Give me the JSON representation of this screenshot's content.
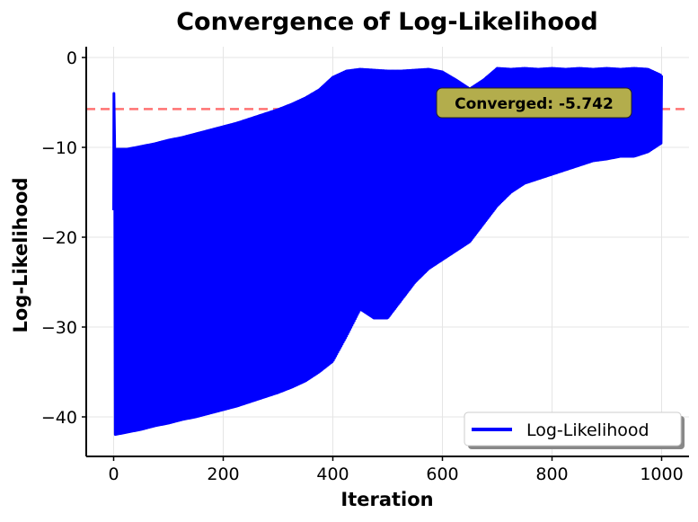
{
  "chart_data": {
    "type": "line",
    "title": "Convergence of Log-Likelihood",
    "xlabel": "Iteration",
    "ylabel": "Log-Likelihood",
    "xlim": [
      -50,
      1050
    ],
    "ylim": [
      -44.4,
      1.2
    ],
    "xticks": [
      0,
      200,
      400,
      600,
      800,
      1000
    ],
    "yticks": [
      0,
      -10,
      -20,
      -30,
      -40
    ],
    "grid": true,
    "legend": {
      "position": "lower-right",
      "entries": [
        "Log-Likelihood"
      ]
    },
    "series": [
      {
        "name": "Log-Likelihood",
        "color": "#0000ff",
        "description_of_values": "oscillating each iteration between upper and lower envelope",
        "x": [
          0,
          25,
          50,
          75,
          100,
          125,
          150,
          175,
          200,
          225,
          250,
          275,
          300,
          325,
          350,
          375,
          400,
          425,
          450,
          475,
          500,
          525,
          550,
          575,
          600,
          625,
          650,
          675,
          700,
          725,
          750,
          775,
          800,
          825,
          850,
          875,
          900,
          925,
          950,
          975,
          1000
        ],
        "upper": [
          -4,
          -10.2,
          -9.9,
          -9.6,
          -9.2,
          -8.9,
          -8.5,
          -8.1,
          -7.7,
          -7.3,
          -6.8,
          -6.3,
          -5.8,
          -5.2,
          -4.5,
          -3.6,
          -2.2,
          -1.5,
          -1.3,
          -1.4,
          -1.5,
          -1.5,
          -1.4,
          -1.3,
          -1.6,
          -2.5,
          -3.5,
          -2.5,
          -1.2,
          -1.3,
          -1.2,
          -1.3,
          -1.2,
          -1.3,
          -1.2,
          -1.3,
          -1.2,
          -1.3,
          -1.2,
          -1.3,
          -2
        ],
        "lower": [
          -42,
          -41.7,
          -41.4,
          -41,
          -40.7,
          -40.3,
          -40,
          -39.6,
          -39.2,
          -38.8,
          -38.3,
          -37.8,
          -37.3,
          -36.7,
          -36,
          -35,
          -33.8,
          -31,
          -28,
          -29,
          -29,
          -27,
          -25,
          -23.5,
          -22.5,
          -21.5,
          -20.5,
          -18.5,
          -16.5,
          -15,
          -14,
          -13.5,
          -13,
          -12.5,
          -12,
          -11.5,
          -11.3,
          -11,
          -11,
          -10.5,
          -9.5
        ]
      }
    ],
    "reference_line": {
      "y": -5.742,
      "color": "#ff6b6b",
      "style": "dashed"
    },
    "annotation": {
      "text": "Converged: -5.742",
      "background": "#b3ad4c",
      "arrow_color": "#ffff33"
    }
  }
}
